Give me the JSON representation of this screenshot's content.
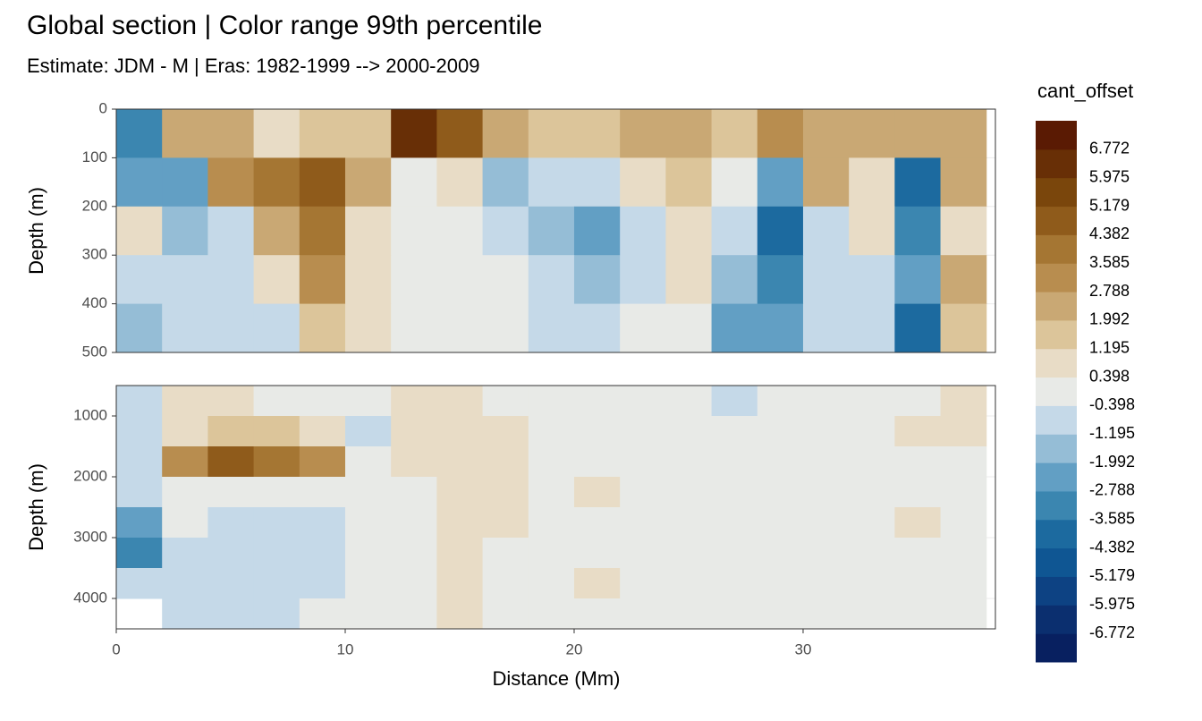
{
  "chart_data": [
    {
      "type": "heatmap",
      "title": "Global section | Color range 99th percentile",
      "subtitle": "Estimate: JDM - M | Eras: 1982-1999 --> 2000-2009",
      "ylabel": "Depth (m)",
      "x": [
        1,
        3,
        5,
        7,
        9,
        11,
        13,
        15,
        17,
        19,
        21,
        23,
        25,
        27,
        29,
        31,
        33,
        35,
        37
      ],
      "y": [
        50,
        150,
        250,
        350,
        450
      ],
      "values": [
        [
          -3,
          2,
          2,
          1,
          1.5,
          1.5,
          6,
          5,
          2,
          1.5,
          1.5,
          2.5,
          2,
          1.5,
          3,
          2.5,
          2.5,
          2,
          2.5
        ],
        [
          -2,
          -2,
          3,
          4,
          5,
          2,
          0,
          1,
          -1.5,
          -1,
          -1,
          1,
          1.5,
          0,
          -2,
          2,
          1,
          -4,
          2
        ],
        [
          1,
          -1.5,
          -1,
          2,
          4,
          1,
          0,
          0,
          -0.5,
          -1.5,
          -2,
          -1,
          1,
          -1,
          -4,
          -1,
          1,
          -3,
          1
        ],
        [
          -1,
          -1,
          -1,
          1,
          3,
          0.5,
          0,
          0,
          0,
          -1,
          -1.5,
          -0.5,
          0.5,
          -1.5,
          -3,
          -1,
          -1,
          -2,
          2
        ],
        [
          -1.5,
          -1,
          -0.5,
          -0.5,
          1.5,
          0.5,
          0,
          0,
          0,
          -0.5,
          -1,
          0,
          0,
          -2,
          -2,
          -0.5,
          -0.5,
          -4,
          1.5
        ]
      ],
      "xlim": [
        0,
        38.4
      ],
      "xticks": [
        0,
        10,
        20,
        30
      ],
      "ylim": [
        0,
        500
      ],
      "yticks": [
        0,
        100,
        200,
        300,
        400,
        500
      ],
      "legend": {
        "title": "cant_offset",
        "breaks": [
          -6.772,
          -5.975,
          -5.179,
          -4.382,
          -3.585,
          -2.788,
          -1.992,
          -1.195,
          -0.398,
          0.398,
          1.195,
          1.992,
          2.788,
          3.585,
          4.382,
          5.179,
          5.975,
          6.772
        ],
        "colors": [
          "#082060",
          "#0b2f6f",
          "#0d4283",
          "#0f5693",
          "#1c6a9f",
          "#3b86b0",
          "#629fc4",
          "#95bdd6",
          "#c5d9e8",
          "#e8eae7",
          "#e8dcc6",
          "#dcc59a",
          "#c9a874",
          "#b88d4f",
          "#a57633",
          "#8f5b1b",
          "#7a460c",
          "#682f06",
          "#5a1a03"
        ]
      }
    },
    {
      "type": "heatmap",
      "ylabel": "Depth (m)",
      "xlabel": "Distance (Mm)",
      "x": [
        1,
        3,
        5,
        7,
        9,
        11,
        13,
        15,
        17,
        19,
        21,
        23,
        25,
        27,
        29,
        31,
        33,
        35,
        37
      ],
      "y": [
        750,
        1250,
        1750,
        2250,
        2750,
        3250,
        3750,
        4250
      ],
      "values": [
        [
          -1,
          0.5,
          0.5,
          0,
          0,
          0,
          0.5,
          0.5,
          0,
          0,
          0,
          0,
          0,
          -1,
          0,
          0,
          0,
          0,
          1
        ],
        [
          -0.5,
          1,
          1.5,
          1.5,
          1,
          -0.5,
          0.5,
          0.5,
          0.5,
          0,
          0,
          0,
          0,
          0,
          0,
          0,
          0,
          0.5,
          0.5
        ],
        [
          -0.5,
          3,
          5,
          4,
          3,
          0,
          0.5,
          0.5,
          0.5,
          0,
          0,
          0,
          0,
          0,
          0,
          0,
          0,
          0,
          0
        ],
        [
          -1,
          0,
          0,
          0,
          0,
          0,
          0,
          0.5,
          0.5,
          0,
          0.5,
          0,
          0,
          0,
          0,
          0,
          0,
          0,
          0
        ],
        [
          -2,
          0,
          -0.5,
          -0.5,
          -0.5,
          0,
          0,
          0.5,
          0.5,
          0,
          0,
          0,
          0,
          0,
          0,
          0,
          0,
          0.5,
          0
        ],
        [
          -3,
          -0.5,
          -0.5,
          -0.5,
          -0.5,
          0,
          0,
          0.5,
          0,
          0,
          0,
          0,
          0,
          0,
          0,
          0,
          0,
          0,
          0
        ],
        [
          -1,
          -0.5,
          -0.5,
          -0.5,
          -0.5,
          0,
          0,
          0.5,
          0,
          0,
          0.5,
          0,
          0,
          0,
          0,
          0,
          0,
          0,
          0
        ],
        [
          null,
          -0.5,
          -0.5,
          -0.5,
          0,
          0,
          0,
          0.5,
          0,
          0,
          0,
          0,
          0,
          0,
          0,
          0,
          0,
          0,
          0
        ]
      ],
      "xlim": [
        0,
        38.4
      ],
      "xticks": [
        0,
        10,
        20,
        30
      ],
      "ylim": [
        500,
        4500
      ],
      "yticks": [
        1000,
        2000,
        3000,
        4000
      ]
    }
  ]
}
